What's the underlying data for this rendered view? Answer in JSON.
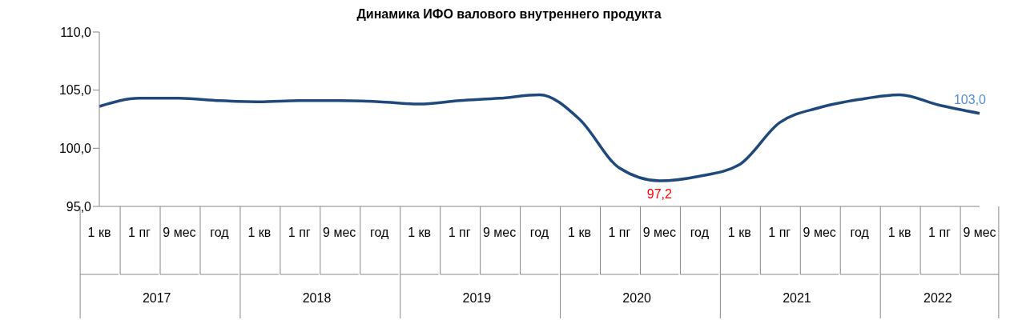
{
  "chart_data": {
    "type": "line",
    "title": "Динамика ИФО валового внутреннего продукта",
    "categories": [
      "1 кв",
      "1 пг",
      "9 мес",
      "год",
      "1 кв",
      "1 пг",
      "9 мес",
      "год",
      "1 кв",
      "1 пг",
      "9 мес",
      "год",
      "1 кв",
      "1 пг",
      "9 мес",
      "год",
      "1 кв",
      "1 пг",
      "9 мес",
      "год",
      "1 кв",
      "1 пг",
      "9 мес"
    ],
    "annotations": [
      "2017",
      "2018",
      "2019",
      "2020",
      "2021",
      "2022"
    ],
    "series": [
      {
        "color": "#1f497d",
        "values": [
          103.6,
          104.3,
          104.3,
          104.1,
          104.0,
          104.1,
          104.1,
          104.0,
          103.8,
          104.1,
          104.3,
          104.6,
          102.5,
          98.3,
          97.2,
          97.6,
          98.6,
          102.2,
          103.5,
          104.2,
          104.6,
          103.7,
          103.0
        ],
        "value_labels": [
          null,
          null,
          null,
          null,
          null,
          null,
          null,
          null,
          null,
          null,
          null,
          null,
          null,
          null,
          "97,2",
          null,
          null,
          null,
          null,
          null,
          null,
          null,
          "103,0"
        ]
      }
    ],
    "ylim": [
      95,
      110
    ],
    "yticks": [
      {
        "value": 95,
        "label": "95,0"
      },
      {
        "value": 100,
        "label": "100,0"
      },
      {
        "value": 105,
        "label": "105,0"
      },
      {
        "value": 110,
        "label": "110,0"
      }
    ],
    "grid": false,
    "legend": false,
    "marker": "none",
    "line_style": "solid"
  }
}
